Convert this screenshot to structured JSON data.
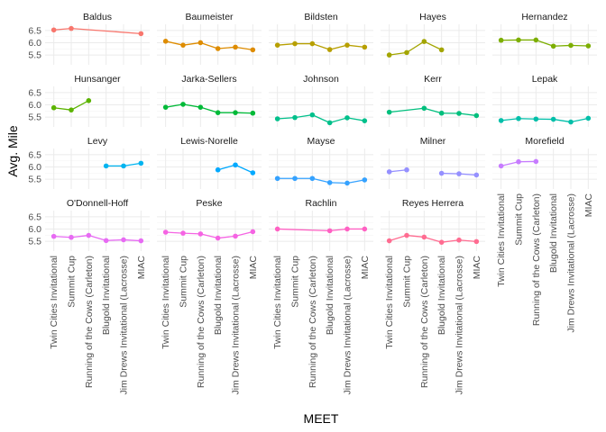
{
  "chart_data": {
    "type": "line",
    "layout": "faceted",
    "xlabel": "MEET",
    "ylabel": "Avg. Mile",
    "categories": [
      "Twin Cities Invitational",
      "Summit Cup",
      "Running of the Cows (Carleton)",
      "Blugold Invitational",
      "Jim Drews Invitational (Lacrosse)",
      "MIAC"
    ],
    "yticks": [
      5.5,
      6.0,
      6.5
    ],
    "ytick_labels": [
      "5.5",
      "6.0",
      "6.5"
    ],
    "ylim": [
      5.1,
      6.75
    ],
    "grid": true,
    "legend": "none",
    "panels": [
      {
        "name": "Baldus",
        "color": "#F8766D",
        "values": [
          6.52,
          6.58,
          null,
          null,
          null,
          6.37
        ]
      },
      {
        "name": "Baumeister",
        "color": "#DE8C00",
        "values": [
          6.06,
          5.9,
          6.0,
          5.76,
          5.82,
          5.71
        ]
      },
      {
        "name": "Bildsten",
        "color": "#B79F00",
        "values": [
          5.9,
          5.96,
          5.96,
          5.72,
          5.9,
          5.82
        ]
      },
      {
        "name": "Hayes",
        "color": "#A3A500",
        "values": [
          5.5,
          5.6,
          6.05,
          5.71,
          null,
          null
        ]
      },
      {
        "name": "Hernandez",
        "color": "#7CAE00",
        "values": [
          6.1,
          6.11,
          6.11,
          5.86,
          5.89,
          5.87
        ]
      },
      {
        "name": "Hunsanger",
        "color": "#5BB300",
        "values": [
          5.88,
          5.79,
          6.17,
          null,
          null,
          null
        ]
      },
      {
        "name": "Jarka-Sellers",
        "color": "#00BA38",
        "values": [
          5.9,
          6.02,
          5.9,
          5.68,
          5.68,
          5.66
        ]
      },
      {
        "name": "Johnson",
        "color": "#00C08B",
        "values": [
          5.43,
          5.48,
          5.59,
          5.27,
          5.47,
          5.35
        ]
      },
      {
        "name": "Kerr",
        "color": "#00BF7D",
        "values": [
          5.7,
          null,
          5.86,
          5.66,
          5.65,
          5.56
        ]
      },
      {
        "name": "Lepak",
        "color": "#00BFA9",
        "values": [
          5.36,
          5.44,
          5.42,
          5.41,
          5.3,
          5.45
        ]
      },
      {
        "name": "Levy",
        "color": "#00B4F0",
        "values": [
          null,
          null,
          null,
          6.04,
          6.04,
          6.15
        ]
      },
      {
        "name": "Lewis-Norelle",
        "color": "#00A9FF",
        "values": [
          null,
          null,
          null,
          5.88,
          6.08,
          5.76
        ]
      },
      {
        "name": "Mayse",
        "color": "#35A2FF",
        "values": [
          5.53,
          5.53,
          5.53,
          5.36,
          5.34,
          5.47
        ]
      },
      {
        "name": "Milner",
        "color": "#9590FF",
        "values": [
          5.8,
          5.88,
          null,
          5.74,
          5.72,
          5.67
        ]
      },
      {
        "name": "Morefield",
        "color": "#C77CFF",
        "values": [
          6.04,
          6.21,
          6.22,
          null,
          null,
          null
        ]
      },
      {
        "name": "O'Donnell-Hoff",
        "color": "#E76BF3",
        "values": [
          5.7,
          5.66,
          5.74,
          5.53,
          5.56,
          5.52
        ]
      },
      {
        "name": "Peske",
        "color": "#F564E3",
        "values": [
          5.87,
          5.83,
          5.8,
          5.63,
          5.71,
          5.89
        ]
      },
      {
        "name": "Rachlin",
        "color": "#FF61C3",
        "values": [
          6.0,
          null,
          null,
          5.93,
          6.0,
          6.0
        ]
      },
      {
        "name": "Reyes Herrera",
        "color": "#FF6C91",
        "values": [
          5.52,
          5.74,
          5.67,
          5.46,
          5.55,
          5.49
        ]
      }
    ]
  }
}
